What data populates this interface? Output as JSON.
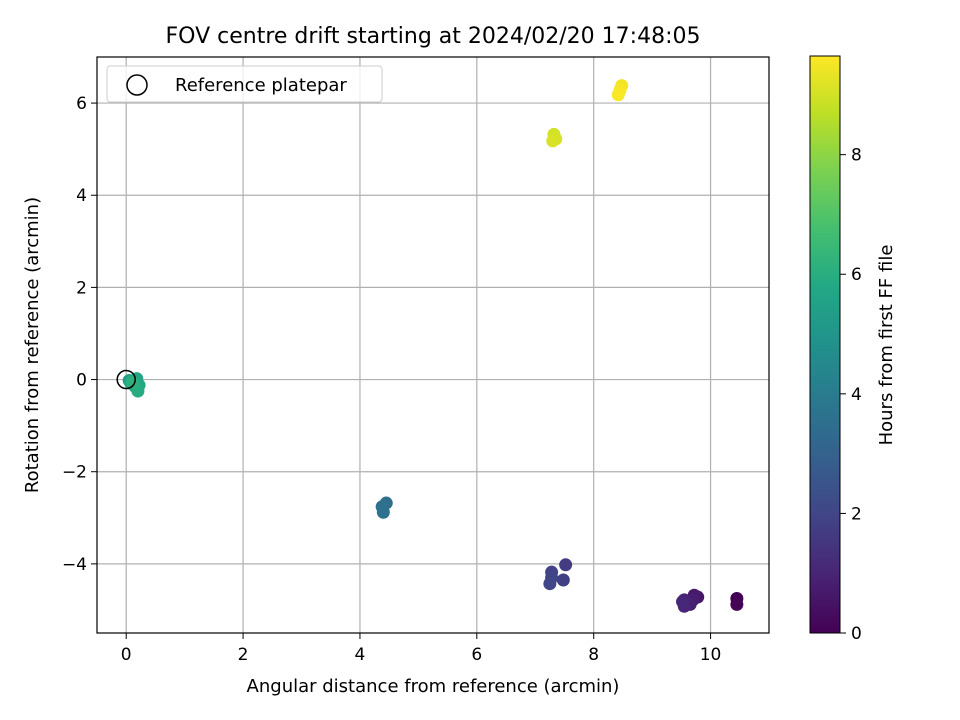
{
  "chart_data": {
    "type": "scatter",
    "title": "FOV centre drift starting at 2024/02/20 17:48:05",
    "xlabel": "Angular distance from reference (arcmin)",
    "ylabel": "Rotation from reference (arcmin)",
    "xlim": [
      -0.5,
      11.0
    ],
    "ylim": [
      -5.5,
      7.0
    ],
    "x_ticks": [
      0,
      2,
      4,
      6,
      8,
      10
    ],
    "y_ticks": [
      -4,
      -2,
      0,
      2,
      4,
      6
    ],
    "x_tick_labels": [
      "0",
      "2",
      "4",
      "6",
      "8",
      "10"
    ],
    "y_tick_labels": [
      "−4",
      "−2",
      "0",
      "2",
      "4",
      "6"
    ],
    "grid": true,
    "colormap": "viridis",
    "colorbar": {
      "label": "Hours from first FF file",
      "range": [
        0,
        9.65
      ],
      "ticks": [
        0,
        2,
        4,
        6,
        8
      ],
      "tick_labels": [
        "0",
        "2",
        "4",
        "6",
        "8"
      ]
    },
    "legend": {
      "position": "top-left",
      "entries": [
        "Reference platepar"
      ]
    },
    "reference": {
      "x": 0.0,
      "y": 0.0,
      "label": "Reference platepar"
    },
    "points": [
      {
        "x": 10.45,
        "y": -4.75,
        "c": 0.0
      },
      {
        "x": 10.45,
        "y": -4.88,
        "c": 0.1
      },
      {
        "x": 9.78,
        "y": -4.72,
        "c": 0.6
      },
      {
        "x": 9.72,
        "y": -4.68,
        "c": 0.7
      },
      {
        "x": 9.7,
        "y": -4.78,
        "c": 0.8
      },
      {
        "x": 9.65,
        "y": -4.88,
        "c": 0.85
      },
      {
        "x": 9.55,
        "y": -4.78,
        "c": 0.9
      },
      {
        "x": 9.55,
        "y": -4.92,
        "c": 1.0
      },
      {
        "x": 9.52,
        "y": -4.82,
        "c": 1.05
      },
      {
        "x": 7.52,
        "y": -4.02,
        "c": 1.7
      },
      {
        "x": 7.48,
        "y": -4.35,
        "c": 1.8
      },
      {
        "x": 7.28,
        "y": -4.18,
        "c": 1.9
      },
      {
        "x": 7.28,
        "y": -4.3,
        "c": 1.95
      },
      {
        "x": 7.25,
        "y": -4.43,
        "c": 2.0
      },
      {
        "x": 4.45,
        "y": -2.68,
        "c": 3.5
      },
      {
        "x": 4.38,
        "y": -2.76,
        "c": 3.55
      },
      {
        "x": 4.4,
        "y": -2.88,
        "c": 3.6
      },
      {
        "x": 0.05,
        "y": -0.02,
        "c": 5.4
      },
      {
        "x": 0.08,
        "y": -0.08,
        "c": 5.5
      },
      {
        "x": 0.12,
        "y": -0.1,
        "c": 5.6
      },
      {
        "x": 0.18,
        "y": 0.02,
        "c": 5.7
      },
      {
        "x": 0.22,
        "y": -0.12,
        "c": 5.8
      },
      {
        "x": 0.2,
        "y": -0.25,
        "c": 5.9
      },
      {
        "x": 0.15,
        "y": -0.15,
        "c": 6.0
      },
      {
        "x": 0.1,
        "y": -0.05,
        "c": 6.1
      },
      {
        "x": 7.32,
        "y": 5.32,
        "c": 9.0
      },
      {
        "x": 7.35,
        "y": 5.22,
        "c": 9.05
      },
      {
        "x": 7.3,
        "y": 5.18,
        "c": 9.1
      },
      {
        "x": 8.48,
        "y": 6.38,
        "c": 9.5
      },
      {
        "x": 8.45,
        "y": 6.28,
        "c": 9.55
      },
      {
        "x": 8.42,
        "y": 6.18,
        "c": 9.6
      }
    ]
  }
}
